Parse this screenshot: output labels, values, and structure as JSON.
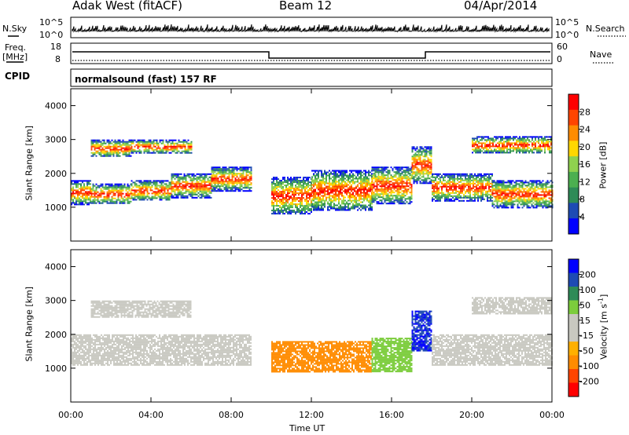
{
  "header": {
    "station": "Adak West (fitACF)",
    "beam": "Beam 12",
    "date": "04/Apr/2014"
  },
  "left_labels": {
    "nsky": "N.Sky",
    "freq": "Freq.",
    "mhz": "[MHz]",
    "cpid": "CPID"
  },
  "right_labels": {
    "nsearch": "N.Search",
    "nave": "Nave"
  },
  "noise_axis": {
    "top": "10^5",
    "bottom": "10^0"
  },
  "freq_axis": {
    "left_ticks": [
      "18",
      "8"
    ],
    "right_ticks": [
      "60",
      "0"
    ]
  },
  "cpid_text": "normalsound (fast) 157 RF",
  "colors": {
    "power_scale": [
      "#0000ff",
      "#1e4bb4",
      "#2e8b57",
      "#4caf50",
      "#8fd14f",
      "#ffd700",
      "#ff8c00",
      "#ff4500",
      "#ff0000"
    ],
    "velocity_scale": [
      "#ff0000",
      "#ff4500",
      "#ff8c00",
      "#ffb000",
      "#c8c8c0",
      "#c8c8c0",
      "#7ccd3c",
      "#2e8b57",
      "#1e4bb4",
      "#0000ff"
    ],
    "ground_scatter": "#c8c8c0"
  },
  "chart_data": [
    {
      "type": "heatmap",
      "panel": "power",
      "ylabel": "Slant Range [km]",
      "xlabel": "Time UT",
      "x_ticks": [
        "00:00",
        "04:00",
        "08:00",
        "12:00",
        "16:00",
        "20:00",
        "00:00"
      ],
      "y_ticks": [
        "1000",
        "2000",
        "3000",
        "4000"
      ],
      "ylim": [
        0,
        4500
      ],
      "xlim_hours": [
        0,
        24
      ],
      "colorbar": {
        "label": "Power [dB]",
        "ticks": [
          "4",
          "8",
          "12",
          "16",
          "20",
          "24",
          "28"
        ]
      },
      "bands": [
        {
          "t": [
            0,
            1
          ],
          "range": [
            1100,
            1800
          ]
        },
        {
          "t": [
            1,
            3
          ],
          "range": [
            1100,
            1700
          ]
        },
        {
          "t": [
            3,
            5
          ],
          "range": [
            1200,
            1800
          ]
        },
        {
          "t": [
            5,
            7
          ],
          "range": [
            1300,
            2000
          ]
        },
        {
          "t": [
            7,
            9
          ],
          "range": [
            1500,
            2200
          ]
        },
        {
          "t": [
            1,
            3
          ],
          "range": [
            2500,
            3000
          ]
        },
        {
          "t": [
            3,
            6
          ],
          "range": [
            2600,
            3000
          ]
        },
        {
          "t": [
            10,
            12
          ],
          "range": [
            800,
            1900
          ]
        },
        {
          "t": [
            12,
            15
          ],
          "range": [
            900,
            2100
          ]
        },
        {
          "t": [
            15,
            17
          ],
          "range": [
            1100,
            2200
          ]
        },
        {
          "t": [
            17,
            18
          ],
          "range": [
            1700,
            2800
          ]
        },
        {
          "t": [
            18,
            21
          ],
          "range": [
            1200,
            2000
          ]
        },
        {
          "t": [
            21,
            24
          ],
          "range": [
            1000,
            1800
          ]
        },
        {
          "t": [
            20,
            24
          ],
          "range": [
            2600,
            3100
          ]
        }
      ]
    },
    {
      "type": "heatmap",
      "panel": "velocity",
      "ylabel": "Slant Range [km]",
      "xlabel": "Time UT",
      "x_ticks": [
        "00:00",
        "04:00",
        "08:00",
        "12:00",
        "16:00",
        "20:00",
        "00:00"
      ],
      "y_ticks": [
        "1000",
        "2000",
        "3000",
        "4000"
      ],
      "ylim": [
        0,
        4500
      ],
      "xlim_hours": [
        0,
        24
      ],
      "colorbar": {
        "label": "Velocity [m s^-1]",
        "ticks": [
          "200",
          "100",
          "50",
          "15",
          "-15",
          "-50",
          "-100",
          "-200"
        ]
      },
      "regions": [
        {
          "t": [
            0,
            9
          ],
          "range": [
            1100,
            2000
          ],
          "velocity": 0
        },
        {
          "t": [
            1,
            6
          ],
          "range": [
            2500,
            3000
          ],
          "velocity": 0
        },
        {
          "t": [
            10,
            15
          ],
          "range": [
            900,
            1800
          ],
          "velocity": -60
        },
        {
          "t": [
            15,
            17
          ],
          "range": [
            900,
            1900
          ],
          "velocity": 40
        },
        {
          "t": [
            17,
            18
          ],
          "range": [
            1500,
            2700
          ],
          "velocity": 150
        },
        {
          "t": [
            18,
            24
          ],
          "range": [
            1100,
            2000
          ],
          "velocity": 0
        },
        {
          "t": [
            20,
            24
          ],
          "range": [
            2600,
            3100
          ],
          "velocity": 0
        }
      ]
    }
  ]
}
